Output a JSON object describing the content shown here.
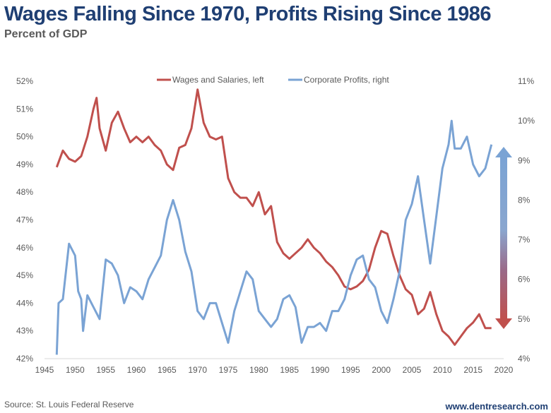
{
  "header": {
    "title": "Wages Falling Since 1970, Profits Rising Since 1986",
    "subtitle": "Percent of GDP"
  },
  "footer": {
    "source": "Source: St. Louis Federal Reserve",
    "website": "www.dentresearch.com"
  },
  "chart_data": {
    "type": "line",
    "title": "Wages Falling Since 1970, Profits Rising Since 1986",
    "subtitle": "Percent of GDP",
    "legend_position": "top",
    "grid": false,
    "xlim": [
      1945,
      2020
    ],
    "x_ticks": [
      "1945",
      "1950",
      "1955",
      "1960",
      "1965",
      "1970",
      "1975",
      "1980",
      "1985",
      "1990",
      "1995",
      "2000",
      "2005",
      "2010",
      "2015",
      "2020"
    ],
    "y_left": {
      "lim": [
        42,
        52
      ],
      "ticks": [
        "42%",
        "43%",
        "44%",
        "45%",
        "46%",
        "47%",
        "48%",
        "49%",
        "50%",
        "51%",
        "52%"
      ]
    },
    "y_right": {
      "lim": [
        4,
        11
      ],
      "ticks": [
        "4%",
        "5%",
        "6%",
        "7%",
        "8%",
        "9%",
        "10%",
        "11%"
      ]
    },
    "series": [
      {
        "name": "Wages and Salaries, left",
        "axis": "left",
        "color": "#c0504d",
        "x": [
          1947,
          1948,
          1949,
          1950,
          1951,
          1952,
          1953,
          1953.5,
          1954,
          1955,
          1956,
          1957,
          1958,
          1959,
          1960,
          1961,
          1962,
          1963,
          1964,
          1965,
          1966,
          1967,
          1968,
          1969,
          1970,
          1971,
          1972,
          1973,
          1974,
          1975,
          1976,
          1977,
          1978,
          1979,
          1980,
          1981,
          1982,
          1983,
          1984,
          1985,
          1986,
          1987,
          1988,
          1989,
          1990,
          1991,
          1992,
          1993,
          1994,
          1995,
          1996,
          1997,
          1998,
          1999,
          2000,
          2001,
          2002,
          2003,
          2004,
          2005,
          2006,
          2007,
          2008,
          2009,
          2010,
          2011,
          2012,
          2013,
          2014,
          2015,
          2016,
          2017,
          2018
        ],
        "y": [
          48.9,
          49.5,
          49.2,
          49.1,
          49.3,
          50.0,
          51.0,
          51.4,
          50.3,
          49.5,
          50.5,
          50.9,
          50.3,
          49.8,
          50.0,
          49.8,
          50.0,
          49.7,
          49.5,
          49.0,
          48.8,
          49.6,
          49.7,
          50.3,
          51.7,
          50.5,
          50.0,
          49.9,
          50.0,
          48.5,
          48.0,
          47.8,
          47.8,
          47.5,
          48.0,
          47.2,
          47.5,
          46.2,
          45.8,
          45.6,
          45.8,
          46.0,
          46.3,
          46.0,
          45.8,
          45.5,
          45.3,
          45.0,
          44.6,
          44.5,
          44.6,
          44.8,
          45.2,
          46.0,
          46.6,
          46.5,
          45.7,
          45.0,
          44.5,
          44.3,
          43.6,
          43.8,
          44.4,
          43.6,
          43.0,
          42.8,
          42.5,
          42.8,
          43.1,
          43.3,
          43.6,
          43.1,
          43.1
        ]
      },
      {
        "name": "Corporate Profits, right",
        "axis": "right",
        "color": "#7aa3d4",
        "x": [
          1947,
          1947.3,
          1948,
          1949,
          1950,
          1950.5,
          1951,
          1951.3,
          1952,
          1953,
          1954,
          1955,
          1956,
          1957,
          1958,
          1959,
          1960,
          1961,
          1962,
          1963,
          1964,
          1965,
          1966,
          1967,
          1968,
          1969,
          1970,
          1971,
          1972,
          1973,
          1974,
          1975,
          1976,
          1977,
          1978,
          1979,
          1980,
          1981,
          1982,
          1983,
          1984,
          1985,
          1986,
          1987,
          1988,
          1989,
          1990,
          1991,
          1992,
          1993,
          1994,
          1995,
          1996,
          1997,
          1998,
          1999,
          2000,
          2001,
          2002,
          2003,
          2004,
          2005,
          2006,
          2007,
          2008,
          2009,
          2010,
          2011,
          2011.5,
          2012,
          2013,
          2014,
          2015,
          2016,
          2017,
          2018
        ],
        "y": [
          4.1,
          5.4,
          5.5,
          6.9,
          6.6,
          5.7,
          5.5,
          4.7,
          5.6,
          5.3,
          5.0,
          6.5,
          6.4,
          6.1,
          5.4,
          5.8,
          5.7,
          5.5,
          6.0,
          6.3,
          6.6,
          7.5,
          8.0,
          7.5,
          6.7,
          6.2,
          5.2,
          5.0,
          5.4,
          5.4,
          4.9,
          4.4,
          5.2,
          5.7,
          6.2,
          6.0,
          5.2,
          5.0,
          4.8,
          5.0,
          5.5,
          5.6,
          5.3,
          4.4,
          4.8,
          4.8,
          4.9,
          4.7,
          5.2,
          5.2,
          5.5,
          6.1,
          6.5,
          6.6,
          6.0,
          5.8,
          5.2,
          4.9,
          5.5,
          6.2,
          7.5,
          7.9,
          8.6,
          7.5,
          6.4,
          7.6,
          8.8,
          9.4,
          10.0,
          9.3,
          9.3,
          9.6,
          8.9,
          8.6,
          8.8,
          9.4
        ]
      }
    ],
    "annotation": {
      "type": "double-arrow",
      "color_top": "#7aa3d4",
      "color_bottom": "#c0504d"
    }
  }
}
